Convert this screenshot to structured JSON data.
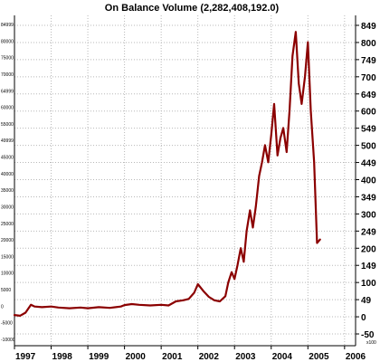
{
  "chart_data": {
    "type": "line",
    "title": "On Balance Volume (2,282,408,192.0)",
    "xlabel": "",
    "ylabel": "",
    "x_ticks": [
      "1997",
      "1998",
      "1999",
      "2000",
      "2001",
      "2002",
      "2003",
      "2004",
      "2005",
      "2006"
    ],
    "y_ticks_right": [
      "849",
      "800",
      "749",
      "700",
      "649",
      "600",
      "549",
      "500",
      "449",
      "400",
      "349",
      "300",
      "249",
      "200",
      "149",
      "100",
      "49",
      "0",
      "-50"
    ],
    "y_unit_right": "x100",
    "y_ticks_left": [
      "84999",
      "80000",
      "75000",
      "70000",
      "64999",
      "60000",
      "55000",
      "49999",
      "45000",
      "40000",
      "35000",
      "30000",
      "25000",
      "20000",
      "15000",
      "10000",
      "5000",
      "0",
      "-5000",
      "-10000"
    ],
    "ylim": [
      -50,
      849
    ],
    "xlim": [
      1997.0,
      2006.3
    ],
    "grid": true,
    "series": [
      {
        "color": "#8b0000",
        "x": [
          1997.0,
          1997.15,
          1997.3,
          1997.45,
          1997.55,
          1997.75,
          1998.0,
          1998.2,
          1998.5,
          1998.8,
          1999.0,
          1999.3,
          1999.6,
          1999.9,
          2000.0,
          2000.2,
          2000.4,
          2000.7,
          2001.0,
          2001.2,
          2001.4,
          2001.6,
          2001.75,
          2001.9,
          2002.0,
          2002.15,
          2002.3,
          2002.45,
          2002.6,
          2002.75,
          2002.83,
          2002.92,
          2003.0,
          2003.08,
          2003.17,
          2003.25,
          2003.33,
          2003.42,
          2003.5,
          2003.58,
          2003.67,
          2003.75,
          2003.83,
          2003.92,
          2004.0,
          2004.08,
          2004.17,
          2004.25,
          2004.33,
          2004.42,
          2004.5,
          2004.58,
          2004.67,
          2004.75,
          2004.83,
          2004.92,
          2005.0,
          2005.08,
          2005.17,
          2005.25,
          2005.33
        ],
        "values": [
          5,
          3,
          12,
          35,
          30,
          28,
          30,
          27,
          25,
          27,
          25,
          28,
          26,
          30,
          34,
          37,
          35,
          33,
          35,
          33,
          45,
          48,
          52,
          70,
          95,
          75,
          58,
          48,
          45,
          60,
          100,
          130,
          110,
          150,
          200,
          160,
          250,
          310,
          260,
          320,
          410,
          450,
          500,
          450,
          530,
          620,
          470,
          520,
          550,
          480,
          600,
          760,
          830,
          680,
          620,
          700,
          800,
          600,
          450,
          215,
          225
        ]
      }
    ]
  }
}
